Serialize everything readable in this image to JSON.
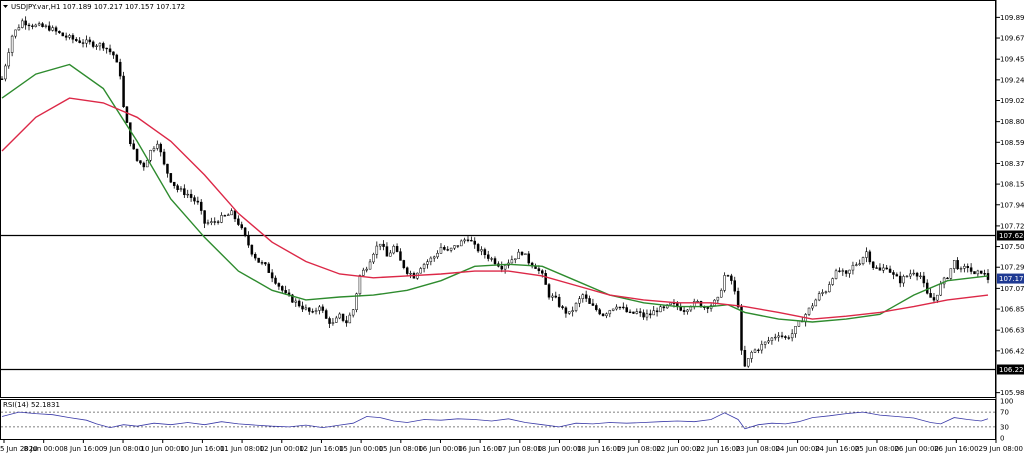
{
  "header": {
    "symbol_line": "USDJPY.var,H1  107.189 107.217 107.157 107.172"
  },
  "rsi": {
    "label": "RSI(14) 52.1831",
    "levels": [
      70,
      30
    ],
    "axis_labels": [
      "100",
      "70",
      "30",
      "0"
    ]
  },
  "chart_data": {
    "type": "candlestick",
    "symbol": "USDJPY.var",
    "timeframe": "H1",
    "ohlc_header": {
      "open": 107.189,
      "high": 107.217,
      "low": 107.157,
      "close": 107.172
    },
    "y_ticks": [
      "109.890",
      "109.675",
      "109.455",
      "109.240",
      "109.025",
      "108.805",
      "108.590",
      "108.370",
      "108.155",
      "107.940",
      "107.720",
      "107.505",
      "107.290",
      "107.070",
      "106.855",
      "106.635",
      "106.420",
      "105.985"
    ],
    "ylim": [
      105.95,
      110.05
    ],
    "x_ticks": [
      "5 Jun 2020",
      "8 Jun 00:00",
      "8 Jun 16:00",
      "9 Jun 08:00",
      "10 Jun 00:00",
      "10 Jun 16:00",
      "11 Jun 08:00",
      "12 Jun 00:00",
      "12 Jun 16:00",
      "15 Jun 00:00",
      "15 Jun 08:00",
      "16 Jun 00:00",
      "16 Jun 16:00",
      "17 Jun 08:00",
      "18 Jun 00:00",
      "18 Jun 16:00",
      "19 Jun 08:00",
      "22 Jun 00:00",
      "22 Jun 16:00",
      "23 Jun 08:00",
      "24 Jun 00:00",
      "24 Jun 16:00",
      "25 Jun 08:00",
      "26 Jun 00:00",
      "26 Jun 16:00",
      "29 Jun 08:00"
    ],
    "horizontal_levels": [
      {
        "label": "107.624",
        "value": 107.624
      },
      {
        "label": "106.226",
        "value": 106.226
      }
    ],
    "current_price": {
      "label": "107.172",
      "value": 107.172
    },
    "close_path": [
      [
        0,
        109.25
      ],
      [
        3,
        109.7
      ],
      [
        6,
        109.85
      ],
      [
        10,
        109.8
      ],
      [
        14,
        109.78
      ],
      [
        18,
        109.7
      ],
      [
        22,
        109.65
      ],
      [
        26,
        109.62
      ],
      [
        30,
        109.6
      ],
      [
        33,
        109.5
      ],
      [
        35,
        109.3
      ],
      [
        36,
        108.95
      ],
      [
        38,
        108.6
      ],
      [
        40,
        108.4
      ],
      [
        42,
        108.35
      ],
      [
        44,
        108.5
      ],
      [
        46,
        108.6
      ],
      [
        48,
        108.35
      ],
      [
        50,
        108.2
      ],
      [
        52,
        108.1
      ],
      [
        55,
        108.05
      ],
      [
        58,
        107.95
      ],
      [
        60,
        107.75
      ],
      [
        62,
        107.75
      ],
      [
        65,
        107.8
      ],
      [
        68,
        107.85
      ],
      [
        70,
        107.75
      ],
      [
        72,
        107.6
      ],
      [
        74,
        107.45
      ],
      [
        76,
        107.35
      ],
      [
        78,
        107.3
      ],
      [
        80,
        107.2
      ],
      [
        82,
        107.1
      ],
      [
        84,
        107.0
      ],
      [
        86,
        106.95
      ],
      [
        88,
        106.9
      ],
      [
        90,
        106.85
      ],
      [
        92,
        106.8
      ],
      [
        94,
        106.9
      ],
      [
        96,
        106.75
      ],
      [
        98,
        106.7
      ],
      [
        100,
        106.78
      ],
      [
        102,
        106.72
      ],
      [
        104,
        106.85
      ],
      [
        106,
        107.2
      ],
      [
        108,
        107.3
      ],
      [
        110,
        107.45
      ],
      [
        112,
        107.55
      ],
      [
        114,
        107.4
      ],
      [
        116,
        107.5
      ],
      [
        118,
        107.35
      ],
      [
        120,
        107.25
      ],
      [
        122,
        107.2
      ],
      [
        124,
        107.3
      ],
      [
        126,
        107.35
      ],
      [
        128,
        107.4
      ],
      [
        130,
        107.5
      ],
      [
        132,
        107.45
      ],
      [
        134,
        107.5
      ],
      [
        136,
        107.55
      ],
      [
        138,
        107.6
      ],
      [
        140,
        107.5
      ],
      [
        142,
        107.45
      ],
      [
        144,
        107.4
      ],
      [
        146,
        107.35
      ],
      [
        148,
        107.3
      ],
      [
        150,
        107.35
      ],
      [
        152,
        107.4
      ],
      [
        154,
        107.45
      ],
      [
        156,
        107.35
      ],
      [
        158,
        107.3
      ],
      [
        160,
        107.2
      ],
      [
        162,
        107.0
      ],
      [
        164,
        106.95
      ],
      [
        166,
        106.85
      ],
      [
        168,
        106.8
      ],
      [
        170,
        106.9
      ],
      [
        172,
        107.0
      ],
      [
        174,
        106.9
      ],
      [
        176,
        106.85
      ],
      [
        178,
        106.8
      ],
      [
        180,
        106.85
      ],
      [
        182,
        106.9
      ],
      [
        184,
        106.85
      ],
      [
        186,
        106.8
      ],
      [
        188,
        106.82
      ],
      [
        190,
        106.78
      ],
      [
        192,
        106.8
      ],
      [
        194,
        106.85
      ],
      [
        196,
        106.85
      ],
      [
        198,
        106.9
      ],
      [
        200,
        106.88
      ],
      [
        202,
        106.85
      ],
      [
        204,
        106.9
      ],
      [
        206,
        106.92
      ],
      [
        208,
        106.88
      ],
      [
        210,
        106.9
      ],
      [
        212,
        106.95
      ],
      [
        214,
        107.2
      ],
      [
        216,
        107.15
      ],
      [
        218,
        106.9
      ],
      [
        219,
        106.4
      ],
      [
        220,
        106.25
      ],
      [
        222,
        106.4
      ],
      [
        224,
        106.45
      ],
      [
        226,
        106.5
      ],
      [
        228,
        106.55
      ],
      [
        230,
        106.6
      ],
      [
        232,
        106.55
      ],
      [
        234,
        106.6
      ],
      [
        236,
        106.7
      ],
      [
        238,
        106.8
      ],
      [
        240,
        106.9
      ],
      [
        242,
        107.0
      ],
      [
        244,
        107.05
      ],
      [
        246,
        107.2
      ],
      [
        248,
        107.25
      ],
      [
        250,
        107.2
      ],
      [
        252,
        107.3
      ],
      [
        254,
        107.35
      ],
      [
        256,
        107.45
      ],
      [
        258,
        107.3
      ],
      [
        260,
        107.25
      ],
      [
        262,
        107.3
      ],
      [
        264,
        107.2
      ],
      [
        266,
        107.15
      ],
      [
        268,
        107.2
      ],
      [
        270,
        107.25
      ],
      [
        272,
        107.2
      ],
      [
        274,
        107.0
      ],
      [
        276,
        106.95
      ],
      [
        278,
        107.1
      ],
      [
        280,
        107.2
      ],
      [
        282,
        107.35
      ],
      [
        284,
        107.25
      ],
      [
        286,
        107.3
      ],
      [
        288,
        107.2
      ],
      [
        290,
        107.25
      ],
      [
        292,
        107.17
      ]
    ],
    "series": [
      {
        "name": "",
        "color": "#2e8b2e",
        "points": [
          [
            0,
            109.05
          ],
          [
            10,
            109.3
          ],
          [
            20,
            109.4
          ],
          [
            30,
            109.15
          ],
          [
            40,
            108.6
          ],
          [
            50,
            108.0
          ],
          [
            60,
            107.6
          ],
          [
            70,
            107.25
          ],
          [
            80,
            107.05
          ],
          [
            90,
            106.95
          ],
          [
            100,
            106.98
          ],
          [
            110,
            107.0
          ],
          [
            120,
            107.05
          ],
          [
            130,
            107.15
          ],
          [
            140,
            107.3
          ],
          [
            150,
            107.32
          ],
          [
            160,
            107.3
          ],
          [
            170,
            107.15
          ],
          [
            180,
            107.0
          ],
          [
            190,
            106.92
          ],
          [
            200,
            106.88
          ],
          [
            210,
            106.88
          ],
          [
            215,
            106.9
          ],
          [
            220,
            106.82
          ],
          [
            230,
            106.75
          ],
          [
            240,
            106.72
          ],
          [
            250,
            106.75
          ],
          [
            260,
            106.8
          ],
          [
            270,
            107.0
          ],
          [
            280,
            107.15
          ],
          [
            292,
            107.2
          ]
        ]
      },
      {
        "name": "",
        "color": "#dc2847",
        "points": [
          [
            0,
            108.5
          ],
          [
            10,
            108.85
          ],
          [
            20,
            109.05
          ],
          [
            30,
            109.0
          ],
          [
            40,
            108.85
          ],
          [
            50,
            108.6
          ],
          [
            60,
            108.25
          ],
          [
            70,
            107.85
          ],
          [
            80,
            107.55
          ],
          [
            90,
            107.35
          ],
          [
            100,
            107.22
          ],
          [
            110,
            107.18
          ],
          [
            120,
            107.2
          ],
          [
            130,
            107.22
          ],
          [
            140,
            107.25
          ],
          [
            150,
            107.25
          ],
          [
            160,
            107.2
          ],
          [
            170,
            107.1
          ],
          [
            180,
            107.0
          ],
          [
            190,
            106.95
          ],
          [
            200,
            106.92
          ],
          [
            210,
            106.92
          ],
          [
            220,
            106.88
          ],
          [
            230,
            106.82
          ],
          [
            240,
            106.75
          ],
          [
            250,
            106.78
          ],
          [
            260,
            106.82
          ],
          [
            270,
            106.88
          ],
          [
            280,
            106.95
          ],
          [
            292,
            107.0
          ]
        ]
      }
    ],
    "rsi_points": [
      [
        0,
        58
      ],
      [
        5,
        70
      ],
      [
        10,
        66
      ],
      [
        15,
        63
      ],
      [
        20,
        55
      ],
      [
        25,
        48
      ],
      [
        28,
        38
      ],
      [
        32,
        28
      ],
      [
        36,
        36
      ],
      [
        40,
        32
      ],
      [
        45,
        40
      ],
      [
        50,
        36
      ],
      [
        55,
        42
      ],
      [
        60,
        36
      ],
      [
        65,
        44
      ],
      [
        70,
        38
      ],
      [
        75,
        35
      ],
      [
        80,
        32
      ],
      [
        85,
        30
      ],
      [
        90,
        35
      ],
      [
        95,
        28
      ],
      [
        100,
        35
      ],
      [
        104,
        40
      ],
      [
        108,
        58
      ],
      [
        112,
        55
      ],
      [
        116,
        46
      ],
      [
        120,
        42
      ],
      [
        125,
        50
      ],
      [
        130,
        48
      ],
      [
        135,
        52
      ],
      [
        140,
        50
      ],
      [
        145,
        46
      ],
      [
        150,
        52
      ],
      [
        155,
        42
      ],
      [
        160,
        36
      ],
      [
        165,
        30
      ],
      [
        170,
        40
      ],
      [
        175,
        38
      ],
      [
        180,
        42
      ],
      [
        185,
        40
      ],
      [
        190,
        42
      ],
      [
        195,
        44
      ],
      [
        200,
        46
      ],
      [
        205,
        44
      ],
      [
        210,
        50
      ],
      [
        214,
        68
      ],
      [
        218,
        50
      ],
      [
        220,
        25
      ],
      [
        224,
        36
      ],
      [
        228,
        40
      ],
      [
        232,
        38
      ],
      [
        236,
        44
      ],
      [
        240,
        55
      ],
      [
        245,
        60
      ],
      [
        250,
        66
      ],
      [
        255,
        70
      ],
      [
        260,
        62
      ],
      [
        265,
        58
      ],
      [
        270,
        54
      ],
      [
        275,
        42
      ],
      [
        278,
        38
      ],
      [
        282,
        55
      ],
      [
        286,
        50
      ],
      [
        290,
        46
      ],
      [
        292,
        52
      ]
    ]
  }
}
